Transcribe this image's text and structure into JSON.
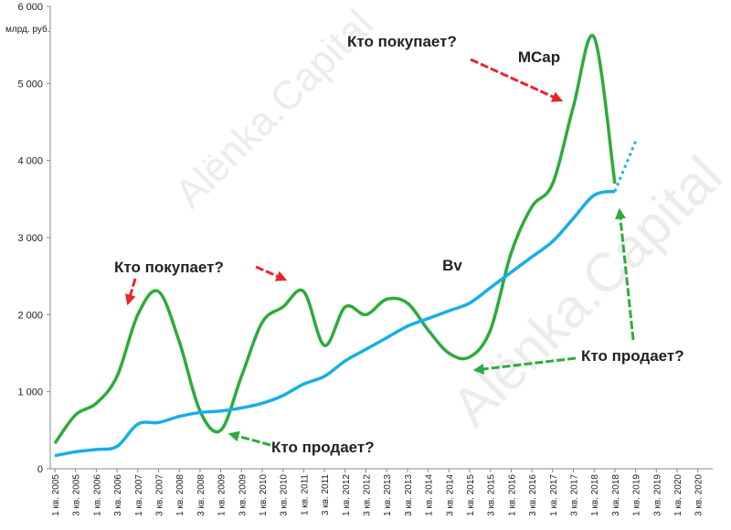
{
  "chart_data": {
    "type": "line",
    "unit": "млрд. руб.",
    "watermark": "Alёnka.Capital",
    "categories": [
      "1 кв. 2005",
      "3 кв. 2005",
      "1 кв. 2006",
      "3 кв. 2006",
      "1 кв. 2007",
      "3 кв. 2007",
      "1 кв. 2008",
      "3 кв. 2008",
      "1 кв. 2009",
      "3 кв. 2009",
      "1 кв. 2010",
      "3 кв. 2010",
      "1 кв. 2011",
      "3 кв. 2011",
      "1 кв. 2012",
      "3 кв. 2012",
      "1 кв. 2013",
      "3 кв. 2013",
      "1 кв. 2014",
      "3 кв. 2014",
      "1 кв. 2015",
      "3 кв. 2015",
      "1 кв. 2016",
      "3 кв. 2016",
      "1 кв. 2017",
      "3 кв. 2017",
      "1 кв. 2018",
      "3 кв. 2018",
      "1 кв. 2019",
      "3 кв. 2019",
      "1 кв. 2020",
      "3 кв. 2020"
    ],
    "series": [
      {
        "name": "MCap",
        "color": "#2eab3a",
        "values": [
          330,
          700,
          850,
          1200,
          2000,
          2300,
          1650,
          750,
          500,
          1200,
          1900,
          2100,
          2300,
          1600,
          2100,
          2000,
          2200,
          2150,
          1800,
          1500,
          1450,
          1800,
          2800,
          3400,
          3700,
          4700,
          5600,
          3700,
          null,
          null,
          null,
          null
        ]
      },
      {
        "name": "Bv",
        "color": "#19aee6",
        "values": [
          170,
          220,
          250,
          290,
          580,
          600,
          680,
          730,
          750,
          790,
          850,
          950,
          1100,
          1200,
          1400,
          1550,
          1700,
          1850,
          1950,
          2050,
          2150,
          2350,
          2550,
          2750,
          2950,
          3250,
          3550,
          3600,
          null,
          null,
          null,
          null
        ]
      },
      {
        "color": "#19aee6",
        "dashed": true,
        "values": [
          null,
          null,
          null,
          null,
          null,
          null,
          null,
          null,
          null,
          null,
          null,
          null,
          null,
          null,
          null,
          null,
          null,
          null,
          null,
          null,
          null,
          null,
          null,
          null,
          null,
          null,
          null,
          3600,
          4250,
          null,
          null,
          null
        ]
      }
    ],
    "ylim": [
      0,
      6000
    ],
    "yticks": [
      0,
      {
        "value": 1000,
        "label": "1 000"
      },
      {
        "value": 2000,
        "label": "2 000"
      },
      {
        "value": 3000,
        "label": "3 000"
      },
      {
        "value": 4000,
        "label": "4 000"
      },
      {
        "value": 5000,
        "label": "5 000"
      },
      {
        "value": 6000,
        "label": "6 000"
      }
    ],
    "annotations": [
      {
        "text": "Кто покупает?",
        "color": "#e8262c"
      },
      {
        "text": "Кто покупает?",
        "color": "#e8262c"
      },
      {
        "text": "Кто продает?",
        "color": "#2eab3a"
      },
      {
        "text": "Кто продает?",
        "color": "#2eab3a"
      }
    ]
  }
}
